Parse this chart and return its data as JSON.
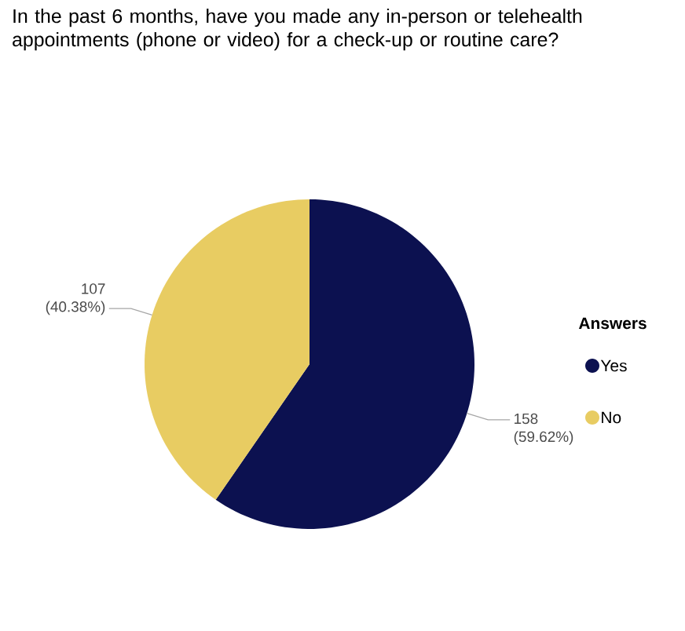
{
  "chart_data": {
    "type": "pie",
    "title": "In the past 6 months, have you made any in-person or telehealth appointments (phone or video) for a check-up or routine care?",
    "categories": [
      "Yes",
      "No"
    ],
    "values": [
      158,
      107
    ],
    "colors": [
      "#0c1150",
      "#e8cc62"
    ],
    "value_labels": [
      "158 (59.62%)",
      "107 (40.38%)"
    ],
    "legend_title": "Answers",
    "legend": "right"
  }
}
